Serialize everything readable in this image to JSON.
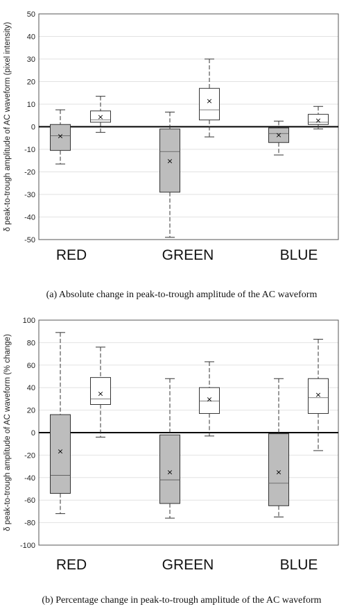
{
  "chart_data": [
    {
      "type": "box",
      "xlabel": "",
      "ylabel": "δ peak-to-trough amplitude of AC waveform (pixel intensity)",
      "caption": "(a) Absolute change in peak-to-trough amplitude of the AC waveform",
      "ylim": [
        -50,
        50
      ],
      "yticks": [
        -50,
        -40,
        -30,
        -20,
        -10,
        0,
        10,
        20,
        30,
        40,
        50
      ],
      "grid": true,
      "categories": [
        "RED",
        "GREEN",
        "BLUE"
      ],
      "boxes": [
        {
          "category": "RED",
          "fill": "#bdbdbd",
          "min": -16.5,
          "q1": -10.5,
          "median": -4,
          "q3": 1,
          "max": 7.5,
          "mean": -4
        },
        {
          "category": "RED",
          "fill": "#ffffff",
          "min": -2.5,
          "q1": 2,
          "median": 3,
          "q3": 7,
          "max": 13.5,
          "mean": 4.5
        },
        {
          "category": "GREEN",
          "fill": "#bdbdbd",
          "min": -49,
          "q1": -29,
          "median": -11,
          "q3": -1,
          "max": 6.5,
          "mean": -15
        },
        {
          "category": "GREEN",
          "fill": "#ffffff",
          "min": -4.5,
          "q1": 3,
          "median": 7.5,
          "q3": 17,
          "max": 30,
          "mean": 11.5
        },
        {
          "category": "BLUE",
          "fill": "#bdbdbd",
          "min": -12.5,
          "q1": -7,
          "median": -3,
          "q3": -0.5,
          "max": 2.5,
          "mean": -3.5
        },
        {
          "category": "BLUE",
          "fill": "#ffffff",
          "min": -1,
          "q1": 1,
          "median": 2,
          "q3": 5.5,
          "max": 9,
          "mean": 3
        }
      ]
    },
    {
      "type": "box",
      "xlabel": "",
      "ylabel": "δ peak-to-trough amplitude of AC waveform (% change)",
      "caption": "(b) Percentage change in peak-to-trough amplitude of the AC waveform",
      "ylim": [
        -100,
        100
      ],
      "yticks": [
        -100,
        -80,
        -60,
        -40,
        -20,
        0,
        20,
        40,
        60,
        80,
        100
      ],
      "grid": true,
      "categories": [
        "RED",
        "GREEN",
        "BLUE"
      ],
      "boxes": [
        {
          "category": "RED",
          "fill": "#bdbdbd",
          "min": -72,
          "q1": -54,
          "median": -38,
          "q3": 16,
          "max": 89,
          "mean": -16.5
        },
        {
          "category": "RED",
          "fill": "#ffffff",
          "min": -4,
          "q1": 25,
          "median": 30,
          "q3": 49,
          "max": 76,
          "mean": 35
        },
        {
          "category": "GREEN",
          "fill": "#bdbdbd",
          "min": -76,
          "q1": -63,
          "median": -42,
          "q3": -2,
          "max": 48,
          "mean": -35
        },
        {
          "category": "GREEN",
          "fill": "#ffffff",
          "min": -3,
          "q1": 17,
          "median": 28,
          "q3": 40,
          "max": 63,
          "mean": 30
        },
        {
          "category": "BLUE",
          "fill": "#bdbdbd",
          "min": -75,
          "q1": -65,
          "median": -45,
          "q3": -1,
          "max": 48,
          "mean": -35
        },
        {
          "category": "BLUE",
          "fill": "#ffffff",
          "min": -16,
          "q1": 17,
          "median": 31,
          "q3": 48,
          "max": 83,
          "mean": 34
        }
      ]
    }
  ]
}
